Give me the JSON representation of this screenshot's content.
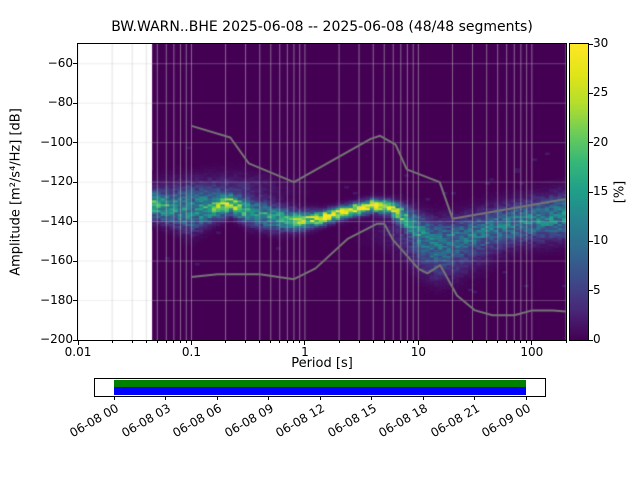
{
  "chart_data": {
    "type": "heatmap",
    "title": "BW.WARN..BHE   2025-06-08 -- 2025-06-08  (48/48 segments)",
    "xlabel": "Period [s]",
    "ylabel": "Amplitude [m²/s⁴/Hz] [dB]",
    "xscale": "log",
    "xlim": [
      0.01,
      200
    ],
    "ylim": [
      -200,
      -50
    ],
    "grid": true,
    "x_ticks": [
      {
        "v": 0.01,
        "label": "0.01"
      },
      {
        "v": 0.1,
        "label": "0.1"
      },
      {
        "v": 1,
        "label": "1"
      },
      {
        "v": 10,
        "label": "10"
      },
      {
        "v": 100,
        "label": "100"
      }
    ],
    "y_ticks": [
      {
        "v": -60,
        "label": "−60"
      },
      {
        "v": -80,
        "label": "−80"
      },
      {
        "v": -100,
        "label": "−100"
      },
      {
        "v": -120,
        "label": "−120"
      },
      {
        "v": -140,
        "label": "−140"
      },
      {
        "v": -160,
        "label": "−160"
      },
      {
        "v": -180,
        "label": "−180"
      },
      {
        "v": -200,
        "label": "−200"
      }
    ],
    "colorbar": {
      "label": "[%]",
      "min": 0,
      "max": 30,
      "colormap": "viridis",
      "ticks": [
        {
          "v": 0,
          "label": "0"
        },
        {
          "v": 5,
          "label": "5"
        },
        {
          "v": 10,
          "label": "10"
        },
        {
          "v": 15,
          "label": "15"
        },
        {
          "v": 20,
          "label": "20"
        },
        {
          "v": 25,
          "label": "25"
        },
        {
          "v": 30,
          "label": "30"
        }
      ]
    },
    "data_period_range": [
      0.045,
      200
    ],
    "db_bin_width": 1,
    "period_step_octaves": 0.125,
    "ppsd_ridge": [
      {
        "p": 0.045,
        "db": -131,
        "sigma": 4.5,
        "peak": 17
      },
      {
        "p": 0.065,
        "db": -133,
        "sigma": 5,
        "peak": 14
      },
      {
        "p": 0.1,
        "db": -135,
        "sigma": 6.5,
        "peak": 11
      },
      {
        "p": 0.15,
        "db": -133,
        "sigma": 4.5,
        "peak": 16
      },
      {
        "p": 0.22,
        "db": -131,
        "sigma": 3,
        "peak": 24
      },
      {
        "p": 0.32,
        "db": -135,
        "sigma": 4,
        "peak": 15
      },
      {
        "p": 0.55,
        "db": -138,
        "sigma": 4,
        "peak": 14
      },
      {
        "p": 0.9,
        "db": -139.5,
        "sigma": 3,
        "peak": 20
      },
      {
        "p": 1.4,
        "db": -138,
        "sigma": 2.2,
        "peak": 27
      },
      {
        "p": 2.2,
        "db": -135,
        "sigma": 2,
        "peak": 29
      },
      {
        "p": 4,
        "db": -131.5,
        "sigma": 2,
        "peak": 30
      },
      {
        "p": 5.5,
        "db": -132.5,
        "sigma": 2.2,
        "peak": 27
      },
      {
        "p": 7.5,
        "db": -137,
        "sigma": 3.5,
        "peak": 17
      },
      {
        "p": 10,
        "db": -144,
        "sigma": 5.5,
        "peak": 11
      },
      {
        "p": 14,
        "db": -149,
        "sigma": 6.5,
        "peak": 9
      },
      {
        "p": 22,
        "db": -148,
        "sigma": 6.5,
        "peak": 9
      },
      {
        "p": 40,
        "db": -144,
        "sigma": 6.5,
        "peak": 10
      },
      {
        "p": 80,
        "db": -140,
        "sigma": 6.5,
        "peak": 11
      },
      {
        "p": 190,
        "db": -137,
        "sigma": 7,
        "peak": 12
      }
    ],
    "noise_models": {
      "color": "#757575",
      "high": [
        [
          0.1,
          -91.5
        ],
        [
          0.22,
          -97.4
        ],
        [
          0.32,
          -110.5
        ],
        [
          0.8,
          -120.0
        ],
        [
          3.8,
          -98.1
        ],
        [
          4.6,
          -96.5
        ],
        [
          6.3,
          -101.0
        ],
        [
          7.9,
          -113.5
        ],
        [
          15.4,
          -120.0
        ],
        [
          20.0,
          -138.5
        ],
        [
          200.0,
          -128.5
        ]
      ],
      "low": [
        [
          0.1,
          -168.1
        ],
        [
          0.17,
          -166.7
        ],
        [
          0.4,
          -166.7
        ],
        [
          0.8,
          -169.2
        ],
        [
          1.24,
          -163.7
        ],
        [
          2.4,
          -148.6
        ],
        [
          4.3,
          -141.1
        ],
        [
          5.0,
          -141.1
        ],
        [
          6.0,
          -149.4
        ],
        [
          10.0,
          -163.8
        ],
        [
          12.0,
          -166.2
        ],
        [
          15.6,
          -162.1
        ],
        [
          21.9,
          -177.5
        ],
        [
          31.6,
          -185.0
        ],
        [
          45.0,
          -187.5
        ],
        [
          70.0,
          -187.5
        ],
        [
          101.0,
          -185.0
        ],
        [
          154.0,
          -185.0
        ],
        [
          200.0,
          -185.5
        ]
      ]
    }
  },
  "timeline": {
    "tick_labels": [
      "06-08 00",
      "06-08 03",
      "06-08 06",
      "06-08 09",
      "06-08 12",
      "06-08 15",
      "06-08 18",
      "06-08 21",
      "06-09 00"
    ],
    "colors": {
      "data": "#008000",
      "segments": "#0000ff",
      "background": "#ffffff",
      "border": "#000000"
    }
  }
}
